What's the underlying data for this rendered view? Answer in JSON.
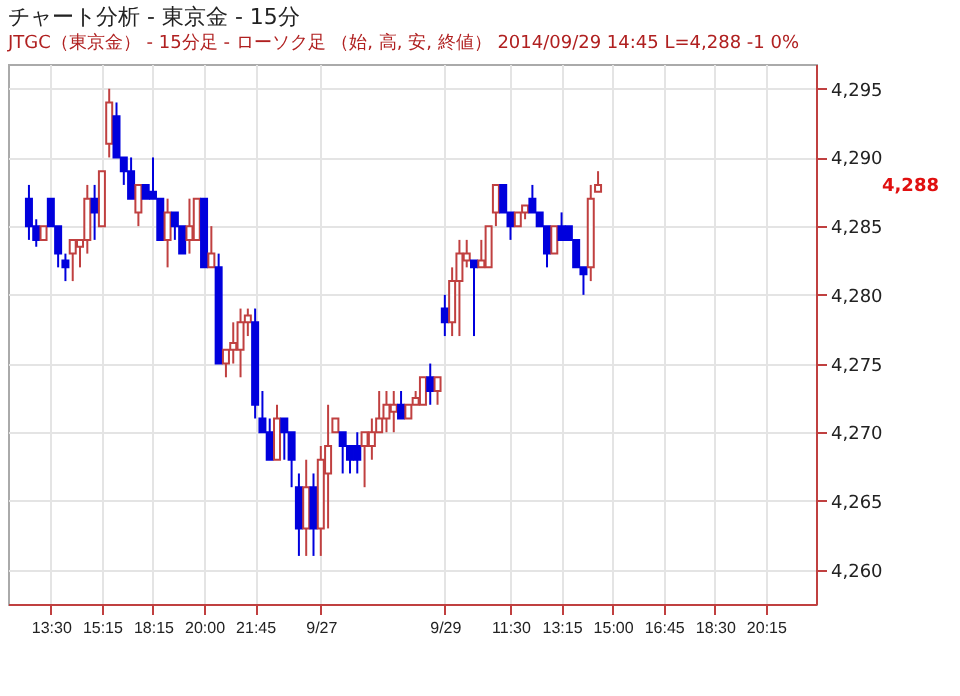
{
  "chart_data": {
    "type": "candlestick",
    "title": "チャート分析 - 東京金 - 15分",
    "subtitle": "JTGC（東京金） - 15分足 - ローソク足 （始, 高, 安, 終値）  2014/09/29 14:45  L=4,288  -1  0%",
    "categories": [
      null,
      null,
      null,
      null,
      "13:30",
      null,
      null,
      null,
      null,
      null,
      null,
      "15:15",
      null,
      null,
      null,
      null,
      null,
      null,
      "18:15",
      null,
      null,
      null,
      null,
      null,
      null,
      "20:00",
      null,
      null,
      null,
      null,
      null,
      null,
      "21:45",
      null,
      null,
      null,
      null,
      null,
      null,
      null,
      null,
      "9/27",
      null,
      null,
      null,
      null,
      null,
      null,
      null,
      null,
      null,
      null,
      null,
      null,
      null,
      null,
      null,
      null,
      "9/29",
      null,
      null,
      null,
      null,
      null,
      null,
      null,
      null,
      "11:30",
      null,
      null,
      null,
      null,
      null,
      null,
      "13:15",
      null,
      null,
      null,
      null,
      null,
      null,
      "15:00",
      null,
      null,
      null,
      null,
      null,
      null,
      "16:45",
      null,
      null,
      null,
      null,
      null,
      null,
      "18:30",
      null,
      null,
      null,
      null,
      null,
      null,
      "20:15",
      null,
      null,
      null,
      null,
      null
    ],
    "ohlc": [
      null,
      [
        4287,
        4288,
        4284,
        4285
      ],
      [
        4285,
        4285.5,
        4283.5,
        4284
      ],
      [
        4284,
        4285,
        4284,
        4285
      ],
      [
        4287,
        4287,
        4285,
        4285
      ],
      [
        4285,
        4285,
        4282,
        4283
      ],
      [
        4282.5,
        4283,
        4281,
        4282
      ],
      [
        4283,
        4284,
        4281,
        4284
      ],
      [
        4283.5,
        4284,
        4282,
        4284
      ],
      [
        4284,
        4288,
        4283,
        4287
      ],
      [
        4287,
        4288,
        4284,
        4286
      ],
      [
        4285,
        4289,
        4285,
        4289
      ],
      [
        4291,
        4295,
        4290,
        4294
      ],
      [
        4293,
        4294,
        4290,
        4290
      ],
      [
        4290,
        4290,
        4288,
        4289
      ],
      [
        4289,
        4290,
        4287,
        4287
      ],
      [
        4286,
        4288,
        4285,
        4288
      ],
      [
        4288,
        4288,
        4287,
        4287
      ],
      [
        4287.5,
        4290,
        4287,
        4287
      ],
      [
        4287,
        4287,
        4284,
        4284
      ],
      [
        4284,
        4287,
        4282,
        4286
      ],
      [
        4286,
        4286,
        4284,
        4285
      ],
      [
        4285,
        4285,
        4283,
        4283
      ],
      [
        4284,
        4287,
        4283,
        4285
      ],
      [
        4284,
        4287,
        4284,
        4287
      ],
      [
        4287,
        4287,
        4282,
        4282
      ],
      [
        4282,
        4285,
        4282,
        4283
      ],
      [
        4282,
        4283,
        4275,
        4275
      ],
      [
        4275,
        4276,
        4274,
        4276
      ],
      [
        4276,
        4278,
        4275,
        4276.5
      ],
      [
        4276,
        4279,
        4274,
        4278
      ],
      [
        4278,
        4279,
        4277,
        4278.5
      ],
      [
        4278,
        4279,
        4271,
        4272
      ],
      [
        4271,
        4273,
        4270,
        4270
      ],
      [
        4270,
        4271,
        4268,
        4268
      ],
      [
        4268,
        4272,
        4268,
        4271
      ],
      [
        4271,
        4271,
        4268,
        4270
      ],
      [
        4270,
        4270,
        4266,
        4268
      ],
      [
        4266,
        4267,
        4261,
        4263
      ],
      [
        4263,
        4268,
        4261,
        4266
      ],
      [
        4266,
        4267,
        4261,
        4263
      ],
      [
        4263,
        4269,
        4261,
        4268
      ],
      [
        4267,
        4272,
        4263,
        4269
      ],
      [
        4270,
        4271,
        4270,
        4271
      ],
      [
        4270,
        4270,
        4267,
        4269
      ],
      [
        4269,
        4269,
        4267,
        4268
      ],
      [
        4269,
        4270,
        4267,
        4268
      ],
      [
        4269,
        4270,
        4266,
        4270
      ],
      [
        4269,
        4271,
        4268,
        4270
      ],
      [
        4270,
        4273,
        4270,
        4271
      ],
      [
        4271,
        4273,
        4270,
        4272
      ],
      [
        4271.5,
        4273,
        4270,
        4272
      ],
      [
        4272,
        4273,
        4271,
        4271
      ],
      [
        4271,
        4272,
        4271,
        4272
      ],
      [
        4272,
        4273,
        4272,
        4272.5
      ],
      [
        4272,
        4274,
        4272,
        4274
      ],
      [
        4274,
        4275,
        4272,
        4273
      ],
      [
        4273,
        4274,
        4272,
        4274
      ],
      [
        4279,
        4280,
        4277,
        4278
      ],
      [
        4278,
        4282,
        4277,
        4281
      ],
      [
        4281,
        4284,
        4277,
        4283
      ],
      [
        4282.5,
        4284,
        4282,
        4283
      ],
      [
        4282.5,
        4282.5,
        4277,
        4282
      ],
      [
        4282,
        4284,
        4282,
        4282.5
      ],
      [
        4282,
        4285,
        4282,
        4285
      ],
      [
        4286,
        4288,
        4285,
        4288
      ],
      [
        4288,
        4288,
        4286,
        4286
      ],
      [
        4286,
        4286,
        4284,
        4285
      ],
      [
        4285,
        4286,
        4285,
        4286
      ],
      [
        4286,
        4286.5,
        4285.5,
        4286.5
      ],
      [
        4287,
        4288,
        4286,
        4286
      ],
      [
        4286,
        4286,
        4285,
        4285
      ],
      [
        4285,
        4285,
        4282,
        4283
      ],
      [
        4283,
        4285,
        4283,
        4285
      ],
      [
        4285,
        4286,
        4284,
        4284
      ],
      [
        4285,
        4285,
        4284,
        4284
      ],
      [
        4284,
        4284,
        4282,
        4282
      ],
      [
        4282,
        4282,
        4280,
        4281.5
      ],
      [
        4282,
        4288,
        4281,
        4287
      ],
      [
        4287.5,
        4289,
        4287.5,
        4288
      ],
      null,
      null,
      null,
      null,
      null,
      null,
      null,
      null,
      null,
      null,
      null,
      null,
      null,
      null,
      null,
      null,
      null,
      null,
      null,
      null,
      null,
      null,
      null,
      null,
      null,
      null,
      null,
      null
    ],
    "ylim": [
      4257.5,
      4296.8
    ],
    "yticks": [
      {
        "value": 4260,
        "label": "4,260"
      },
      {
        "value": 4265,
        "label": "4,265"
      },
      {
        "value": 4270,
        "label": "4,270"
      },
      {
        "value": 4275,
        "label": "4,275"
      },
      {
        "value": 4280,
        "label": "4,280"
      },
      {
        "value": 4285,
        "label": "4,285"
      },
      {
        "value": 4290,
        "label": "4,290"
      },
      {
        "value": 4295,
        "label": "4,295"
      }
    ],
    "grid": true,
    "annotations": [
      "4,288"
    ]
  }
}
